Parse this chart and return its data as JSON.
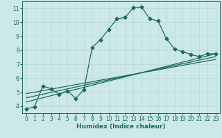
{
  "xlabel": "Humidex (Indice chaleur)",
  "bg_color": "#cce8e8",
  "line_color": "#1a6b5a",
  "xlim": [
    -0.5,
    23.5
  ],
  "ylim": [
    3.5,
    11.5
  ],
  "xticks": [
    0,
    1,
    2,
    3,
    4,
    5,
    6,
    7,
    8,
    9,
    10,
    11,
    12,
    13,
    14,
    15,
    16,
    17,
    18,
    19,
    20,
    21,
    22,
    23
  ],
  "yticks": [
    4,
    5,
    6,
    7,
    8,
    9,
    10,
    11
  ],
  "main_x": [
    0,
    1,
    2,
    3,
    4,
    5,
    6,
    7,
    8,
    9,
    10,
    11,
    12,
    13,
    14,
    15,
    16,
    17,
    18,
    19,
    20,
    21,
    22,
    23
  ],
  "main_y": [
    3.8,
    3.95,
    5.45,
    5.25,
    4.85,
    5.1,
    4.55,
    5.2,
    8.2,
    8.75,
    9.5,
    10.25,
    10.35,
    11.05,
    11.1,
    10.25,
    10.1,
    8.85,
    8.1,
    7.9,
    7.7,
    7.55,
    7.75,
    7.75
  ],
  "line1_x": [
    0,
    23
  ],
  "line1_y": [
    4.9,
    7.35
  ],
  "line2_x": [
    0,
    23
  ],
  "line2_y": [
    4.6,
    7.55
  ],
  "line3_x": [
    0,
    23
  ],
  "line3_y": [
    4.3,
    7.75
  ],
  "grid_color": "#b8d8d8",
  "marker": "D",
  "markersize": 2.5,
  "linewidth": 0.9
}
